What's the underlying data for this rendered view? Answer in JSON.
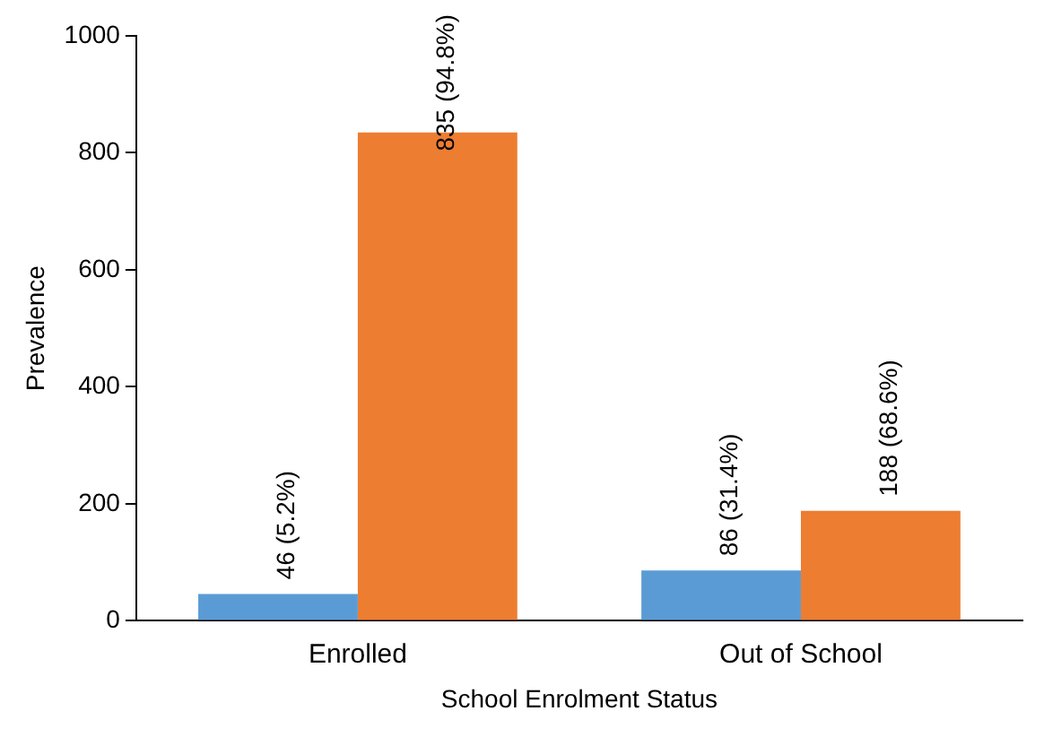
{
  "chart_data": {
    "type": "bar",
    "categories": [
      "Enrolled",
      "Out of School"
    ],
    "xlabel": "School Enrolment Status",
    "ylabel": "Prevalence",
    "series": [
      {
        "color": "#5b9bd5",
        "values": [
          46,
          86
        ],
        "value_labels": [
          "46 (5.2%)",
          "86 (31.4%)"
        ]
      },
      {
        "color": "#ed7d31",
        "values": [
          835,
          188
        ],
        "value_labels": [
          "835 (94.8%)",
          "188 (68.6%)"
        ]
      }
    ],
    "ylim": [
      0,
      1000
    ],
    "yticks": [
      0,
      200,
      400,
      600,
      800,
      1000
    ],
    "grid": false,
    "legend": false
  }
}
